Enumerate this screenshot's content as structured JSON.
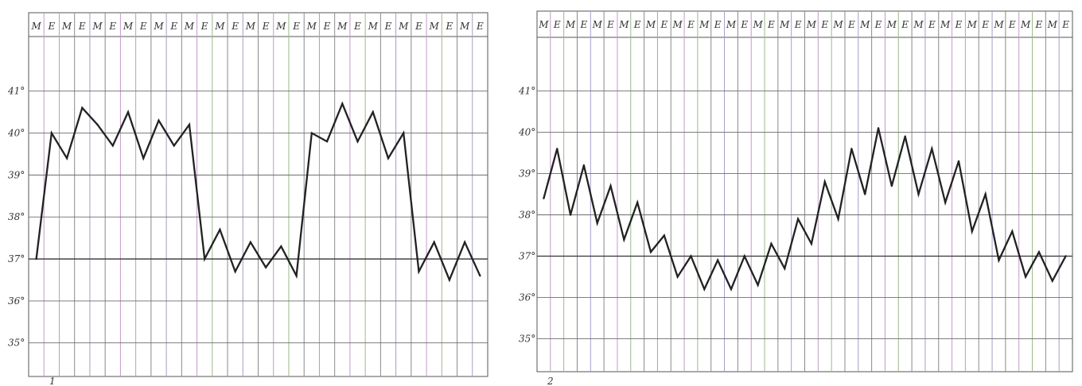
{
  "chart_data": [
    {
      "type": "line",
      "figure_number": "1",
      "columns": [
        "M",
        "E",
        "M",
        "E",
        "M",
        "E",
        "M",
        "E",
        "M",
        "E",
        "M",
        "E",
        "M",
        "E",
        "M",
        "E",
        "M",
        "E",
        "M",
        "E",
        "M",
        "E",
        "M",
        "E",
        "M",
        "E",
        "M",
        "E",
        "M",
        "E"
      ],
      "y_tick_labels": [
        "41°",
        "40°",
        "39°",
        "38°",
        "37°",
        "36°",
        "35°"
      ],
      "y_ticks": [
        41,
        40,
        39,
        38,
        37,
        36,
        35
      ],
      "ylim": [
        34.2,
        42.3
      ],
      "reference_line": 37,
      "x": [
        1,
        2,
        3,
        4,
        5,
        6,
        7,
        8,
        9,
        10,
        11,
        12,
        13,
        14,
        15,
        16,
        17,
        18,
        19,
        20,
        21,
        22,
        23,
        24,
        25,
        26,
        27,
        28,
        29,
        30
      ],
      "values": [
        37.0,
        40.0,
        39.4,
        40.6,
        40.2,
        39.7,
        40.5,
        39.4,
        40.3,
        39.7,
        40.2,
        37.0,
        37.7,
        36.7,
        37.4,
        36.8,
        37.3,
        36.6,
        40.0,
        39.8,
        40.7,
        39.8,
        40.5,
        39.4,
        40.0,
        36.7,
        37.4,
        36.5,
        37.4,
        36.6
      ],
      "line_color": "#222222",
      "grid_color": "#6c6c6c"
    },
    {
      "type": "line",
      "figure_number": "2",
      "columns": [
        "M",
        "E",
        "M",
        "E",
        "M",
        "E",
        "M",
        "E",
        "M",
        "E",
        "M",
        "E",
        "M",
        "E",
        "M",
        "E",
        "M",
        "E",
        "M",
        "E",
        "M",
        "E",
        "M",
        "E",
        "M",
        "E",
        "M",
        "E",
        "M",
        "E",
        "M",
        "E",
        "M",
        "E",
        "M",
        "E",
        "M",
        "E",
        "M",
        "E"
      ],
      "y_tick_labels": [
        "41°",
        "40°",
        "39°",
        "38°",
        "37°",
        "36°",
        "35°"
      ],
      "y_ticks": [
        41,
        40,
        39,
        38,
        37,
        36,
        35
      ],
      "ylim": [
        34.2,
        42.3
      ],
      "reference_line": 37,
      "x": [
        1,
        2,
        3,
        4,
        5,
        6,
        7,
        8,
        9,
        10,
        11,
        12,
        13,
        14,
        15,
        16,
        17,
        18,
        19,
        20,
        21,
        22,
        23,
        24,
        25,
        26,
        27,
        28,
        29,
        30,
        31,
        32,
        33,
        34,
        35,
        36,
        37,
        38,
        39,
        40
      ],
      "values": [
        38.4,
        39.6,
        38.0,
        39.2,
        37.8,
        38.7,
        37.4,
        38.3,
        37.1,
        37.5,
        36.5,
        37.0,
        36.2,
        36.9,
        36.2,
        37.0,
        36.3,
        37.3,
        36.7,
        37.9,
        37.3,
        38.8,
        37.9,
        39.6,
        38.5,
        40.1,
        38.7,
        39.9,
        38.5,
        39.6,
        38.3,
        39.3,
        37.6,
        38.5,
        36.9,
        37.6,
        36.5,
        37.1,
        36.4,
        37.0
      ],
      "line_color": "#222222",
      "grid_color": "#6c6c6c"
    }
  ]
}
